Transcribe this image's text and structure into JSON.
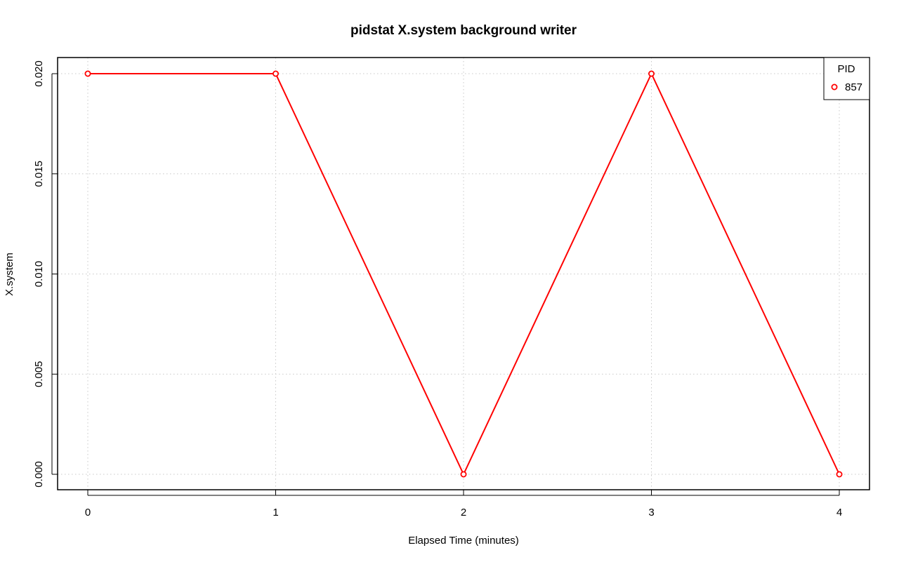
{
  "chart_data": {
    "type": "line",
    "title": "pidstat X.system background writer",
    "xlabel": "Elapsed Time (minutes)",
    "ylabel": "X.system",
    "xlim": [
      0,
      4
    ],
    "ylim": [
      0,
      0.02
    ],
    "x_ticks": [
      "0",
      "1",
      "2",
      "3",
      "4"
    ],
    "y_ticks": [
      "0.000",
      "0.005",
      "0.010",
      "0.015",
      "0.020"
    ],
    "grid": true,
    "legend": {
      "title": "PID",
      "placement": "top-right"
    },
    "series": [
      {
        "name": "857",
        "color": "#ff0000",
        "marker": "open-circle",
        "x": [
          0,
          1,
          2,
          3,
          4
        ],
        "y": [
          0.02,
          0.02,
          0.0,
          0.02,
          0.0
        ]
      }
    ]
  }
}
